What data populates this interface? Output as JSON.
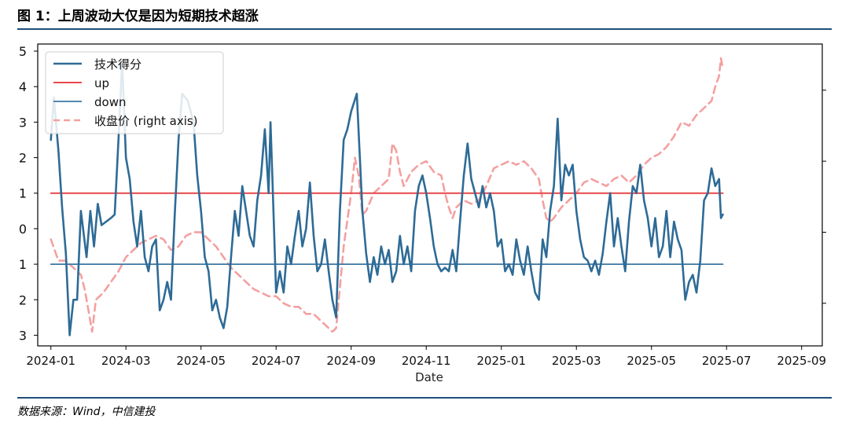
{
  "figure": {
    "title": "图 1：上周波动大仅是因为短期技术超涨",
    "source": "数据来源：Wind，中信建投"
  },
  "colors": {
    "score": "#2e6b96",
    "up": "#e8474a",
    "down": "#3d77a3",
    "price": "#f4a0a0",
    "rule": "#1f4e79"
  },
  "chart_data": {
    "type": "line",
    "title": "",
    "xlabel": "Date",
    "ylabel": "",
    "x_ticks": [
      "2024-01",
      "2024-03",
      "2024-05",
      "2024-07",
      "2024-09",
      "2024-11",
      "2025-01",
      "2025-03",
      "2025-05",
      "2025-07",
      "2025-09"
    ],
    "x_range_months": [
      -0.35,
      20.55
    ],
    "y_ticks": [
      5,
      4,
      3,
      2,
      1,
      0,
      -1,
      -2,
      -3
    ],
    "y_tick_labels": [
      "5",
      "4",
      "3",
      "2",
      "1",
      "0",
      "1",
      "2",
      "3"
    ],
    "ylim": [
      -3.3,
      5.2
    ],
    "legend_position": "upper-left",
    "legend": [
      "技术得分",
      "up",
      "down",
      "收盘价 (right axis)"
    ],
    "series": [
      {
        "name": "技术得分",
        "style": "solid",
        "points": [
          [
            0,
            2.5
          ],
          [
            0.08,
            3.7
          ],
          [
            0.2,
            2.2
          ],
          [
            0.3,
            0.6
          ],
          [
            0.4,
            -0.7
          ],
          [
            0.5,
            -3.0
          ],
          [
            0.6,
            -2.0
          ],
          [
            0.7,
            -2.0
          ],
          [
            0.8,
            0.5
          ],
          [
            0.95,
            -0.8
          ],
          [
            1.05,
            0.5
          ],
          [
            1.15,
            -0.5
          ],
          [
            1.25,
            0.7
          ],
          [
            1.35,
            0.1
          ],
          [
            1.6,
            0.3
          ],
          [
            1.7,
            0.4
          ],
          [
            1.8,
            2.5
          ],
          [
            1.9,
            4.7
          ],
          [
            2.0,
            2.0
          ],
          [
            2.1,
            1.4
          ],
          [
            2.2,
            0.2
          ],
          [
            2.3,
            -0.5
          ],
          [
            2.4,
            0.5
          ],
          [
            2.5,
            -0.8
          ],
          [
            2.6,
            -1.2
          ],
          [
            2.7,
            -0.5
          ],
          [
            2.8,
            -0.3
          ],
          [
            2.9,
            -2.3
          ],
          [
            3.0,
            -2.0
          ],
          [
            3.1,
            -1.5
          ],
          [
            3.2,
            -2.0
          ],
          [
            3.3,
            0.4
          ],
          [
            3.4,
            2.5
          ],
          [
            3.5,
            3.8
          ],
          [
            3.65,
            3.6
          ],
          [
            3.8,
            3.0
          ],
          [
            3.9,
            1.5
          ],
          [
            4.0,
            0.5
          ],
          [
            4.1,
            -0.8
          ],
          [
            4.2,
            -1.2
          ],
          [
            4.3,
            -2.3
          ],
          [
            4.4,
            -2.0
          ],
          [
            4.5,
            -2.5
          ],
          [
            4.6,
            -2.8
          ],
          [
            4.7,
            -2.2
          ],
          [
            4.8,
            -0.8
          ],
          [
            4.9,
            0.5
          ],
          [
            5.0,
            -0.2
          ],
          [
            5.1,
            1.2
          ],
          [
            5.2,
            0.5
          ],
          [
            5.3,
            -0.2
          ],
          [
            5.4,
            -0.5
          ],
          [
            5.5,
            0.8
          ],
          [
            5.6,
            1.5
          ],
          [
            5.7,
            2.8
          ],
          [
            5.8,
            1.0
          ],
          [
            5.85,
            3.0
          ],
          [
            5.9,
            1.5
          ],
          [
            6.0,
            -1.8
          ],
          [
            6.1,
            -1.2
          ],
          [
            6.2,
            -1.8
          ],
          [
            6.3,
            -0.5
          ],
          [
            6.4,
            -1.0
          ],
          [
            6.5,
            -0.2
          ],
          [
            6.6,
            0.5
          ],
          [
            6.7,
            -0.5
          ],
          [
            6.8,
            0.0
          ],
          [
            6.9,
            1.3
          ],
          [
            7.0,
            -0.2
          ],
          [
            7.1,
            -1.2
          ],
          [
            7.2,
            -1.0
          ],
          [
            7.3,
            -0.3
          ],
          [
            7.4,
            -1.2
          ],
          [
            7.5,
            -2.0
          ],
          [
            7.6,
            -2.5
          ],
          [
            7.7,
            0.5
          ],
          [
            7.8,
            2.5
          ],
          [
            7.9,
            2.8
          ],
          [
            8.0,
            3.3
          ],
          [
            8.15,
            3.8
          ],
          [
            8.3,
            0.5
          ],
          [
            8.4,
            -0.7
          ],
          [
            8.5,
            -1.5
          ],
          [
            8.6,
            -0.8
          ],
          [
            8.7,
            -1.3
          ],
          [
            8.8,
            -0.5
          ],
          [
            8.9,
            -1.0
          ],
          [
            9.0,
            -0.6
          ],
          [
            9.1,
            -1.5
          ],
          [
            9.2,
            -1.2
          ],
          [
            9.3,
            -0.2
          ],
          [
            9.4,
            -1.0
          ],
          [
            9.5,
            -0.5
          ],
          [
            9.6,
            -1.2
          ],
          [
            9.7,
            0.5
          ],
          [
            9.8,
            1.2
          ],
          [
            9.9,
            1.5
          ],
          [
            10.0,
            1.0
          ],
          [
            10.1,
            0.3
          ],
          [
            10.2,
            -0.5
          ],
          [
            10.3,
            -1.0
          ],
          [
            10.4,
            -1.2
          ],
          [
            10.5,
            -1.1
          ],
          [
            10.6,
            -1.2
          ],
          [
            10.7,
            -0.6
          ],
          [
            10.8,
            -1.2
          ],
          [
            10.9,
            0.2
          ],
          [
            11.0,
            1.5
          ],
          [
            11.1,
            2.4
          ],
          [
            11.2,
            1.4
          ],
          [
            11.3,
            1.0
          ],
          [
            11.4,
            0.6
          ],
          [
            11.5,
            1.2
          ],
          [
            11.6,
            0.6
          ],
          [
            11.7,
            1.0
          ],
          [
            11.8,
            0.5
          ],
          [
            11.9,
            -0.5
          ],
          [
            12.0,
            -0.3
          ],
          [
            12.1,
            -1.2
          ],
          [
            12.2,
            -1.0
          ],
          [
            12.3,
            -1.3
          ],
          [
            12.4,
            -0.3
          ],
          [
            12.5,
            -0.9
          ],
          [
            12.6,
            -1.3
          ],
          [
            12.7,
            -0.5
          ],
          [
            12.8,
            -1.2
          ],
          [
            12.9,
            -1.8
          ],
          [
            13.0,
            -2.0
          ],
          [
            13.1,
            -0.3
          ],
          [
            13.2,
            -0.8
          ],
          [
            13.3,
            0.5
          ],
          [
            13.4,
            1.2
          ],
          [
            13.5,
            3.1
          ],
          [
            13.6,
            0.8
          ],
          [
            13.7,
            1.8
          ],
          [
            13.8,
            1.5
          ],
          [
            13.9,
            1.8
          ],
          [
            14.0,
            0.5
          ],
          [
            14.1,
            -0.3
          ],
          [
            14.2,
            -0.8
          ],
          [
            14.3,
            -0.9
          ],
          [
            14.4,
            -1.2
          ],
          [
            14.5,
            -0.9
          ],
          [
            14.6,
            -1.3
          ],
          [
            14.7,
            -0.7
          ],
          [
            14.8,
            0.2
          ],
          [
            14.9,
            1.0
          ],
          [
            15.0,
            -0.5
          ],
          [
            15.1,
            0.3
          ],
          [
            15.2,
            -0.5
          ],
          [
            15.3,
            -1.2
          ],
          [
            15.4,
            0.2
          ],
          [
            15.5,
            1.2
          ],
          [
            15.6,
            1.0
          ],
          [
            15.7,
            1.8
          ],
          [
            15.8,
            0.8
          ],
          [
            15.9,
            0.3
          ],
          [
            16.0,
            -0.5
          ],
          [
            16.1,
            0.3
          ],
          [
            16.2,
            -0.8
          ],
          [
            16.3,
            -0.5
          ],
          [
            16.4,
            0.5
          ],
          [
            16.5,
            -0.8
          ],
          [
            16.6,
            0.2
          ],
          [
            16.7,
            -0.3
          ],
          [
            16.8,
            -0.6
          ],
          [
            16.9,
            -2.0
          ],
          [
            17.0,
            -1.5
          ],
          [
            17.1,
            -1.3
          ],
          [
            17.2,
            -1.8
          ],
          [
            17.3,
            -0.9
          ],
          [
            17.4,
            0.8
          ],
          [
            17.5,
            1.0
          ],
          [
            17.6,
            1.7
          ],
          [
            17.7,
            1.2
          ],
          [
            17.8,
            1.4
          ],
          [
            17.85,
            0.3
          ],
          [
            17.9,
            0.4
          ]
        ]
      },
      {
        "name": "up",
        "style": "solid",
        "points": [
          [
            0,
            1
          ],
          [
            17.9,
            1
          ]
        ]
      },
      {
        "name": "down",
        "style": "solid",
        "points": [
          [
            0,
            -1
          ],
          [
            17.9,
            -1
          ]
        ]
      },
      {
        "name": "收盘价 (right axis)",
        "style": "dashed",
        "points": [
          [
            0,
            -0.3
          ],
          [
            0.2,
            -0.9
          ],
          [
            0.4,
            -0.9
          ],
          [
            0.6,
            -1.1
          ],
          [
            0.8,
            -1.3
          ],
          [
            0.9,
            -1.7
          ],
          [
            1.0,
            -2.3
          ],
          [
            1.1,
            -2.9
          ],
          [
            1.2,
            -2.0
          ],
          [
            1.4,
            -1.8
          ],
          [
            1.6,
            -1.5
          ],
          [
            1.8,
            -1.2
          ],
          [
            2.0,
            -0.8
          ],
          [
            2.2,
            -0.6
          ],
          [
            2.4,
            -0.4
          ],
          [
            2.6,
            -0.3
          ],
          [
            2.8,
            -0.2
          ],
          [
            3.0,
            -0.3
          ],
          [
            3.2,
            -0.6
          ],
          [
            3.4,
            -0.5
          ],
          [
            3.6,
            -0.2
          ],
          [
            3.8,
            -0.1
          ],
          [
            4.0,
            -0.1
          ],
          [
            4.2,
            -0.3
          ],
          [
            4.4,
            -0.5
          ],
          [
            4.6,
            -0.8
          ],
          [
            4.8,
            -1.1
          ],
          [
            5.0,
            -1.3
          ],
          [
            5.2,
            -1.5
          ],
          [
            5.4,
            -1.7
          ],
          [
            5.6,
            -1.8
          ],
          [
            5.8,
            -1.9
          ],
          [
            6.0,
            -1.9
          ],
          [
            6.2,
            -2.1
          ],
          [
            6.4,
            -2.2
          ],
          [
            6.6,
            -2.2
          ],
          [
            6.8,
            -2.4
          ],
          [
            7.0,
            -2.4
          ],
          [
            7.2,
            -2.6
          ],
          [
            7.4,
            -2.8
          ],
          [
            7.5,
            -2.9
          ],
          [
            7.6,
            -2.8
          ],
          [
            7.8,
            -0.5
          ],
          [
            8.0,
            1.0
          ],
          [
            8.1,
            2.0
          ],
          [
            8.2,
            1.5
          ],
          [
            8.3,
            0.4
          ],
          [
            8.4,
            0.5
          ],
          [
            8.6,
            1.0
          ],
          [
            8.8,
            1.2
          ],
          [
            9.0,
            1.4
          ],
          [
            9.1,
            2.4
          ],
          [
            9.2,
            2.2
          ],
          [
            9.3,
            1.6
          ],
          [
            9.4,
            1.2
          ],
          [
            9.6,
            1.6
          ],
          [
            9.8,
            1.8
          ],
          [
            10.0,
            1.9
          ],
          [
            10.2,
            1.6
          ],
          [
            10.4,
            1.5
          ],
          [
            10.5,
            1.0
          ],
          [
            10.6,
            0.6
          ],
          [
            10.7,
            0.3
          ],
          [
            10.8,
            0.6
          ],
          [
            11.0,
            0.8
          ],
          [
            11.2,
            0.7
          ],
          [
            11.4,
            0.8
          ],
          [
            11.6,
            1.2
          ],
          [
            11.8,
            1.7
          ],
          [
            12.0,
            1.8
          ],
          [
            12.2,
            1.9
          ],
          [
            12.4,
            1.8
          ],
          [
            12.6,
            1.9
          ],
          [
            12.8,
            1.7
          ],
          [
            13.0,
            1.4
          ],
          [
            13.1,
            0.8
          ],
          [
            13.2,
            0.3
          ],
          [
            13.3,
            0.2
          ],
          [
            13.4,
            0.3
          ],
          [
            13.6,
            0.6
          ],
          [
            13.8,
            0.8
          ],
          [
            14.0,
            1.0
          ],
          [
            14.2,
            1.3
          ],
          [
            14.4,
            1.4
          ],
          [
            14.6,
            1.3
          ],
          [
            14.8,
            1.2
          ],
          [
            15.0,
            1.4
          ],
          [
            15.2,
            1.5
          ],
          [
            15.4,
            1.3
          ],
          [
            15.6,
            1.5
          ],
          [
            15.8,
            1.8
          ],
          [
            16.0,
            2.0
          ],
          [
            16.2,
            2.1
          ],
          [
            16.4,
            2.3
          ],
          [
            16.6,
            2.6
          ],
          [
            16.8,
            3.0
          ],
          [
            17.0,
            2.9
          ],
          [
            17.2,
            3.2
          ],
          [
            17.4,
            3.4
          ],
          [
            17.6,
            3.6
          ],
          [
            17.7,
            4.0
          ],
          [
            17.8,
            4.3
          ],
          [
            17.85,
            4.8
          ],
          [
            17.9,
            4.5
          ]
        ]
      }
    ]
  }
}
